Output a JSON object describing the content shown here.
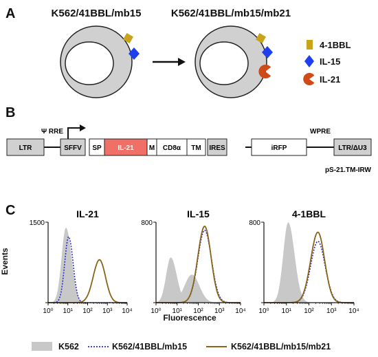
{
  "panel_a": {
    "letter": "A",
    "cell1_title": "K562/41BBL/mb15",
    "cell2_title": "K562/41BBL/mb15/mb21",
    "legend": [
      {
        "label": "4-1BBL",
        "color": "#c8a41a",
        "icon": "square-icon"
      },
      {
        "label": "IL-15",
        "color": "#1e3ff0",
        "icon": "diamond-icon"
      },
      {
        "label": "IL-21",
        "color": "#d04a18",
        "icon": "pacman-icon"
      }
    ]
  },
  "panel_b": {
    "letter": "B",
    "construct": [
      "LTR",
      "Ψ RRE",
      "SFFV",
      "SP",
      "IL-21",
      "M",
      "CD8α",
      "TM",
      "IRES",
      "iRFP",
      "WPRE",
      "LTR/ΔU3"
    ],
    "vector_name": "pS-21.TM-IRW"
  },
  "panel_c": {
    "letter": "C",
    "y_axis_label": "Events",
    "x_axis_label": "Fluorescence",
    "x_tick_labels": [
      "10⁰",
      "10¹",
      "10²",
      "10³",
      "10⁴"
    ],
    "legend": [
      {
        "label": "K562",
        "color": "#c8c8c8",
        "style": "filled"
      },
      {
        "label": "K562/41BBL/mb15",
        "color": "#2a2ad0",
        "style": "dotted"
      },
      {
        "label": "K562/41BBL/mb15/mb21",
        "color": "#8a6416",
        "style": "solid"
      }
    ]
  },
  "chart_data": [
    {
      "type": "area",
      "title": "IL-21",
      "xlabel": "",
      "ylabel": "Events",
      "x_scale": "log",
      "xlim": [
        1,
        10000
      ],
      "ylim": [
        0,
        1500
      ],
      "y_ticks": [
        0,
        1500
      ],
      "x_peaks": {
        "K562": 8,
        "K562/41BBL/mb15": 11,
        "K562/41BBL/mb15/mb21": 400
      },
      "peak_heights": {
        "K562": 1400,
        "K562/41BBL/mb15": 1230,
        "K562/41BBL/mb15/mb21": 800
      }
    },
    {
      "type": "area",
      "title": "IL-15",
      "xlabel": "Fluorescence",
      "ylabel": "",
      "x_scale": "log",
      "xlim": [
        1,
        10000
      ],
      "ylim": [
        0,
        800
      ],
      "y_ticks": [
        0,
        800
      ],
      "x_peaks": {
        "K562": 5,
        "K562/41BBL/mb15": 200,
        "K562/41BBL/mb15/mb21": 200
      },
      "peak_heights": {
        "K562": 450,
        "K562/41BBL/mb15": 720,
        "K562/41BBL/mb15/mb21": 760
      }
    },
    {
      "type": "area",
      "title": "4-1BBL",
      "xlabel": "",
      "ylabel": "",
      "x_scale": "log",
      "xlim": [
        1,
        10000
      ],
      "ylim": [
        0,
        800
      ],
      "y_ticks": [
        0,
        800
      ],
      "x_peaks": {
        "K562": 12,
        "K562/41BBL/mb15": 250,
        "K562/41BBL/mb15/mb21": 250
      },
      "peak_heights": {
        "K562": 800,
        "K562/41BBL/mb15": 610,
        "K562/41BBL/mb15/mb21": 700
      }
    }
  ]
}
